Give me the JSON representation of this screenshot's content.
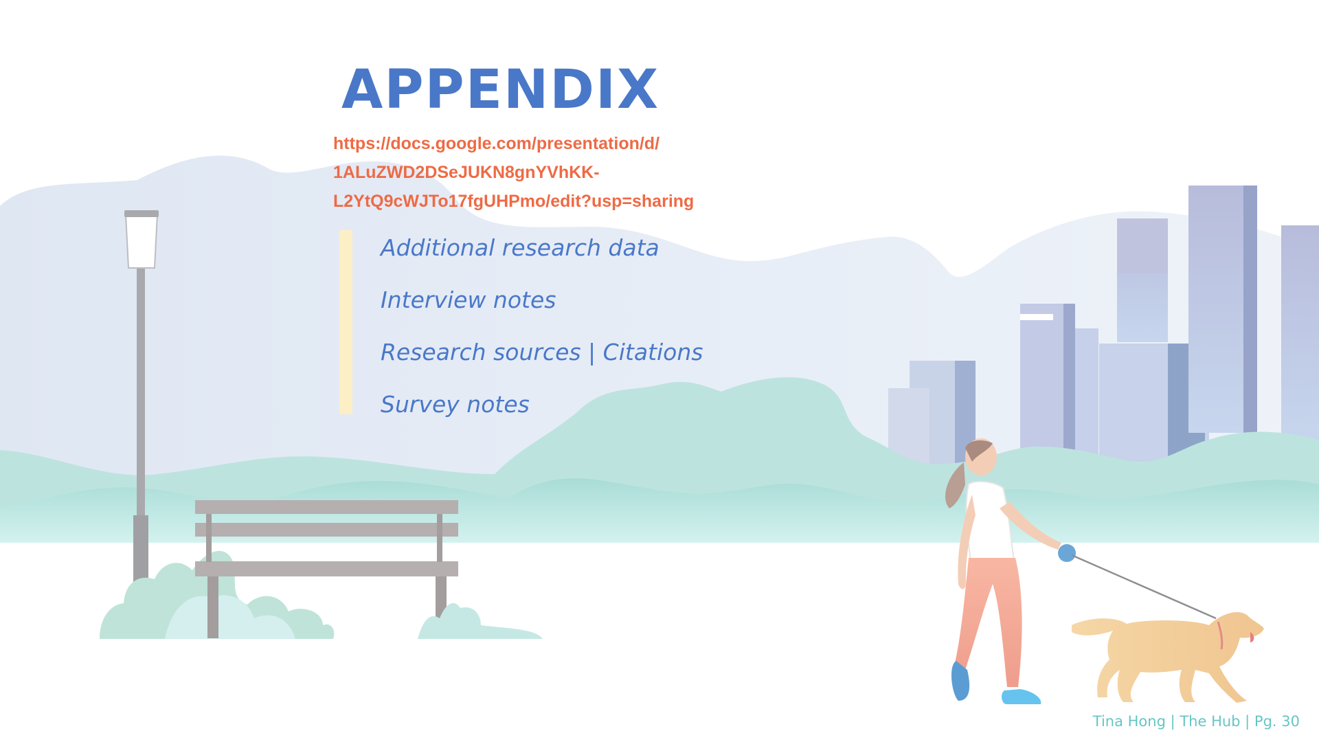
{
  "slide": {
    "title": "APPENDIX",
    "link_lines": [
      "https://docs.google.com/presentation/d/",
      "1ALuZWD2DSeJUKN8gnYVhKK-",
      "L2YtQ9cWJTo17fgUHPmo/edit?usp=sharing"
    ],
    "items": [
      "Additional research data",
      "Interview notes",
      "Research sources | Citations",
      "Survey notes"
    ],
    "footer": "Tina Hong | The Hub | Pg. 30"
  },
  "colors": {
    "title": "#4a78c8",
    "link": "#ee6a45",
    "items": "#4a78c8",
    "accent_bar": "#fdefc5",
    "footer": "#66c6c4"
  },
  "illustration": {
    "elements": [
      "street-lamp",
      "park-bench",
      "city-skyline",
      "bushes",
      "woman-walking",
      "dog-on-leash"
    ]
  }
}
